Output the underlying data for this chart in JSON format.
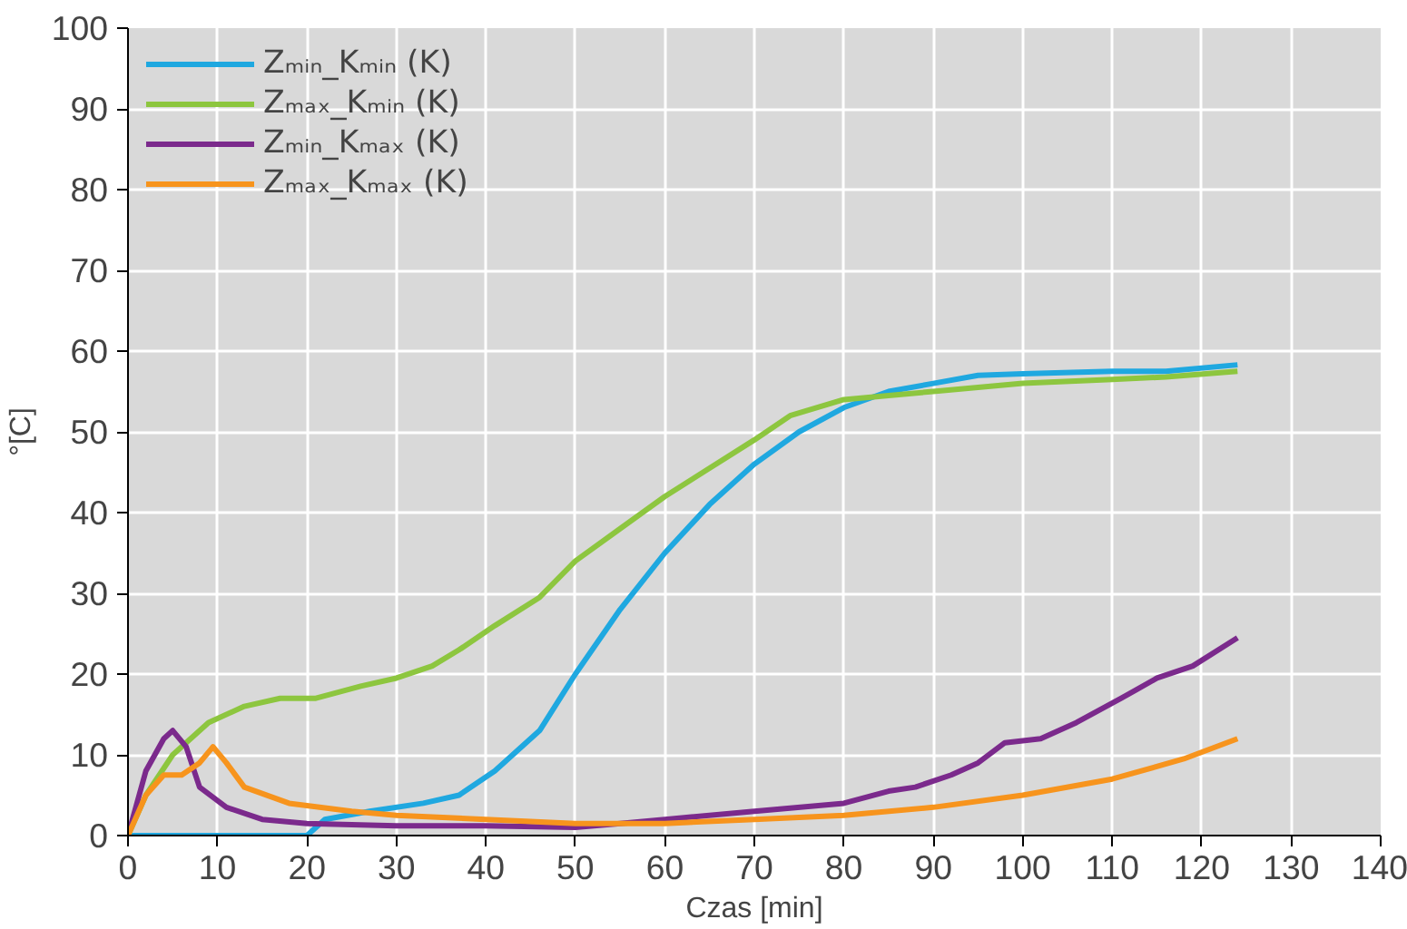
{
  "chart_data": {
    "type": "line",
    "xlabel": "Czas [min]",
    "ylabel": "°[C]",
    "xlim": [
      0,
      140
    ],
    "ylim": [
      0,
      100
    ],
    "xticks": [
      0,
      10,
      20,
      30,
      40,
      50,
      60,
      70,
      80,
      90,
      100,
      110,
      120,
      130,
      140
    ],
    "yticks": [
      0,
      10,
      20,
      30,
      40,
      50,
      60,
      70,
      80,
      90,
      100
    ],
    "grid": true,
    "legend": "top left",
    "marker": "none",
    "line_style": "solid",
    "series": [
      {
        "name": "Zₘᵢₙ_Kₘᵢₙ (K)",
        "color": "#1fa8e0",
        "x": [
          0,
          10,
          20,
          22,
          27,
          33,
          37,
          41,
          46,
          50,
          55,
          60,
          65,
          70,
          75,
          80,
          85,
          90,
          95,
          100,
          110,
          116,
          124
        ],
        "values": [
          0,
          0,
          0,
          2,
          3,
          4,
          5,
          8,
          13,
          20,
          28,
          35,
          41,
          46,
          50,
          53,
          55,
          56,
          57,
          57.2,
          57.5,
          57.5,
          58.3
        ]
      },
      {
        "name": "Zₘₐₓ_Kₘᵢₙ (K)",
        "color": "#8dc63f",
        "x": [
          0,
          2,
          5,
          9,
          13,
          17,
          21,
          26,
          30,
          34,
          37,
          41,
          46,
          50,
          55,
          60,
          65,
          70,
          74,
          80,
          85,
          90,
          95,
          100,
          110,
          116,
          124
        ],
        "values": [
          0,
          5,
          10,
          14,
          16,
          17,
          17,
          18.5,
          19.5,
          21,
          23,
          26,
          29.5,
          34,
          38,
          42,
          45.5,
          49,
          52,
          54,
          54.5,
          55,
          55.5,
          56,
          56.5,
          56.8,
          57.5
        ]
      },
      {
        "name": "Zₘᵢₙ_Kₘₐₓ (K)",
        "color": "#7b2a8c",
        "x": [
          0,
          2,
          4,
          5,
          6.5,
          8,
          11,
          15,
          20,
          30,
          40,
          50,
          55,
          60,
          70,
          80,
          85,
          88,
          92,
          95,
          98,
          102,
          106,
          111,
          115,
          119,
          124
        ],
        "values": [
          0,
          8,
          12,
          13,
          11,
          6,
          3.5,
          2,
          1.5,
          1.2,
          1.2,
          1,
          1.5,
          2,
          3,
          4,
          5.5,
          6,
          7.5,
          9,
          11.5,
          12,
          14,
          17,
          19.5,
          21,
          24.5
        ]
      },
      {
        "name": "Zₘₐₓ_Kₘₐₓ (K)",
        "color": "#f7941d",
        "x": [
          0,
          2,
          4,
          6,
          8,
          9.5,
          11,
          13,
          18,
          25,
          30,
          40,
          50,
          60,
          70,
          80,
          90,
          100,
          110,
          118,
          124
        ],
        "values": [
          0,
          5,
          7.5,
          7.5,
          9,
          11,
          9,
          6,
          4,
          3,
          2.5,
          2,
          1.5,
          1.5,
          2,
          2.5,
          3.5,
          5,
          7,
          9.5,
          12
        ]
      }
    ]
  }
}
